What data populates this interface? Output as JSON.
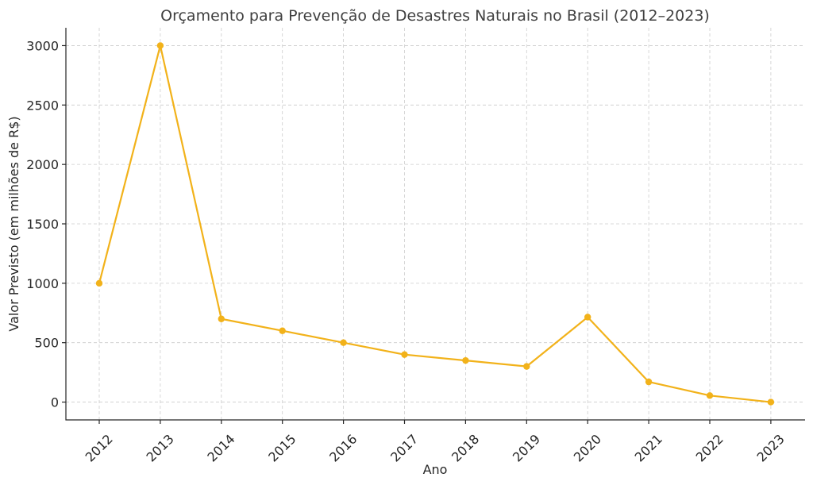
{
  "chart_data": {
    "type": "line",
    "title": "Orçamento para Prevenção de Desastres Naturais no Brasil (2012–2023)",
    "xlabel": "Ano",
    "ylabel": "Valor Previsto (em milhões de R$)",
    "categories": [
      "2012",
      "2013",
      "2014",
      "2015",
      "2016",
      "2017",
      "2018",
      "2019",
      "2020",
      "2021",
      "2022",
      "2023"
    ],
    "series": [
      {
        "values": [
          1000,
          3000,
          700,
          600,
          500,
          400,
          350,
          300,
          715,
          170,
          55,
          0
        ],
        "color": "#f2b21a"
      }
    ],
    "yticks": [
      "0",
      "500",
      "1000",
      "1500",
      "2000",
      "2500",
      "3000"
    ],
    "ylim": [
      -150,
      3150
    ],
    "grid": true
  }
}
